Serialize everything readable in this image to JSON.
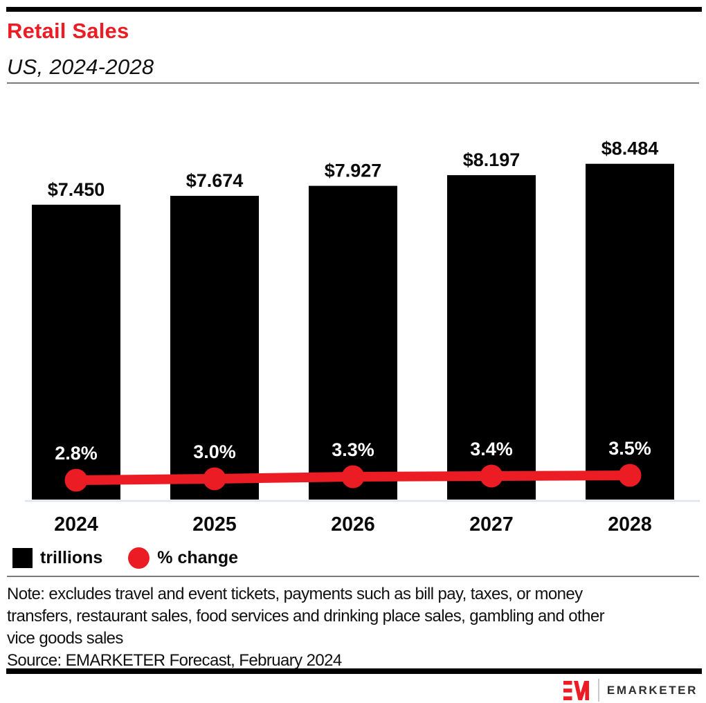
{
  "header": {
    "title": "Retail Sales",
    "subtitle": "US, 2024-2028"
  },
  "chart_data": {
    "type": "bar",
    "title": "Retail Sales",
    "subtitle": "US, 2024-2028",
    "categories": [
      "2024",
      "2025",
      "2026",
      "2027",
      "2028"
    ],
    "series": [
      {
        "name": "trillions",
        "type": "bar",
        "values": [
          7.45,
          7.674,
          7.927,
          8.197,
          8.484
        ],
        "labels": [
          "$7.450",
          "$7.674",
          "$7.927",
          "$8.197",
          "$8.484"
        ],
        "color": "#000000"
      },
      {
        "name": "% change",
        "type": "line",
        "values": [
          2.8,
          3.0,
          3.3,
          3.4,
          3.5
        ],
        "labels": [
          "2.8%",
          "3.0%",
          "3.3%",
          "3.4%",
          "3.5%"
        ],
        "color": "#ec1c24"
      }
    ],
    "bar_ylim": [
      0,
      10
    ],
    "line_ylim": [
      0,
      57
    ],
    "grid": false,
    "legend_position": "bottom-left"
  },
  "legend": {
    "items": [
      {
        "label": "trillions",
        "swatch": "square",
        "color": "#000000"
      },
      {
        "label": "% change",
        "swatch": "circle",
        "color": "#ec1c24"
      }
    ]
  },
  "note": {
    "lines": [
      "Note: excludes travel and event tickets, payments such as bill pay, taxes, or money",
      "transfers, restaurant sales, food services and drinking place sales, gambling and other",
      "vice goods sales"
    ]
  },
  "source": "Source: EMARKETER Forecast, February 2024",
  "footer": {
    "logo": "em-monogram",
    "brand": "EMARKETER"
  },
  "colors": {
    "accent": "#ec1c24",
    "axis_line": "#dfe3ee",
    "rule": "#7b7b7b",
    "value_label": "#0a0a0a",
    "pct_label": "#ffffff"
  }
}
